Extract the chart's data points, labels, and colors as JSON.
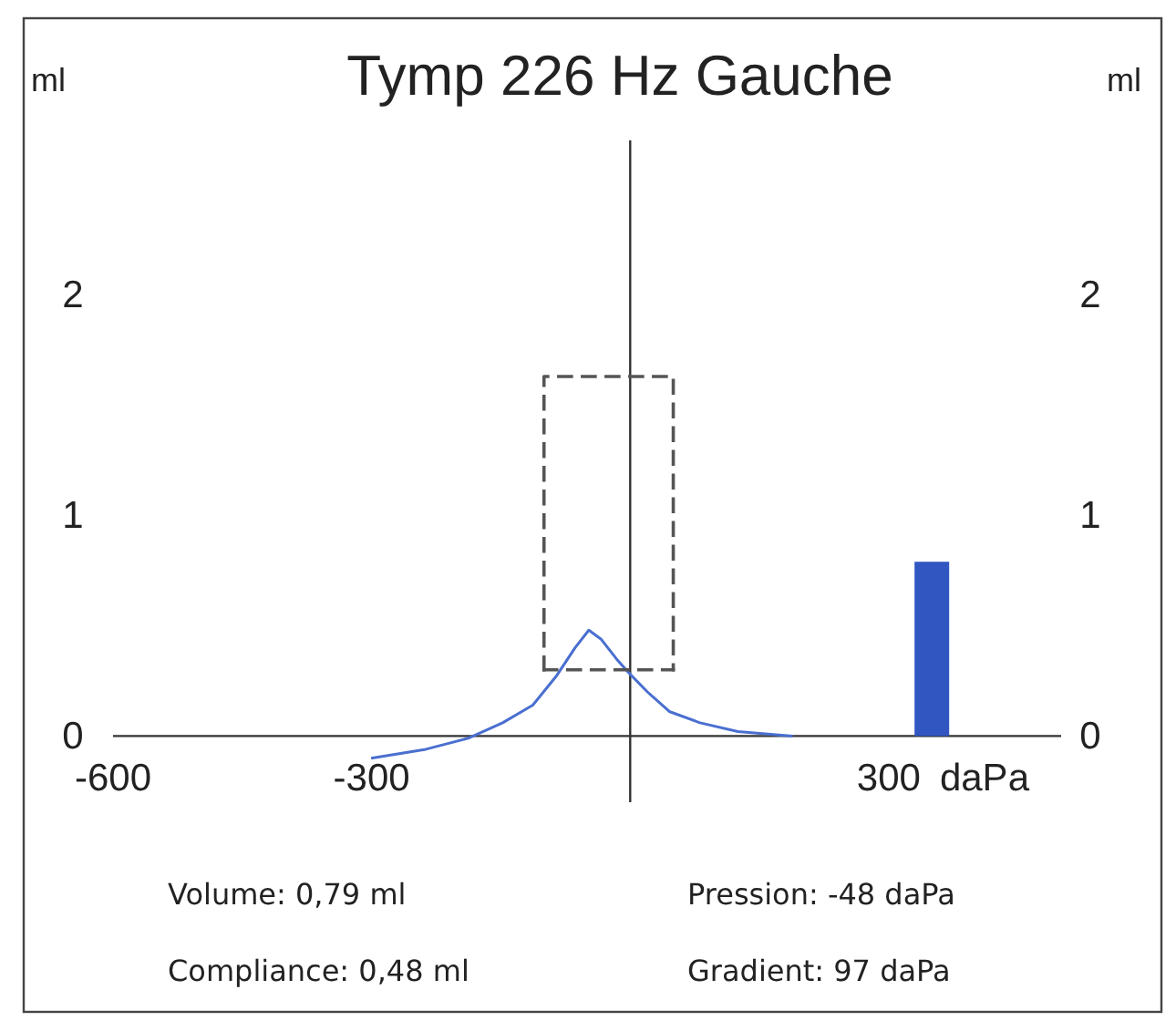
{
  "chart_data": {
    "type": "line",
    "title": "Tymp 226 Hz Gauche",
    "xlabel": "daPa",
    "ylabel": "ml",
    "y2label": "ml",
    "xlim": [
      -600,
      500
    ],
    "xticks": [
      -600,
      -300,
      300
    ],
    "ylim": [
      -0.3,
      2.7
    ],
    "yticks": [
      0,
      1,
      2
    ],
    "y2lim": [
      -0.3,
      2.7
    ],
    "y2ticks": [
      0,
      1,
      2
    ],
    "grid": false,
    "series": [
      {
        "color": "#4a6fd0",
        "x": [
          -299,
          -237,
          -188,
          -148,
          -113,
          -86,
          -64,
          -48,
          -34,
          -16,
          0,
          20,
          46,
          81,
          125,
          187
        ],
        "values": [
          -0.1,
          -0.06,
          -0.01,
          0.06,
          0.14,
          0.27,
          0.4,
          0.48,
          0.44,
          0.35,
          0.28,
          0.2,
          0.11,
          0.06,
          0.02,
          0
        ]
      },
      {
        "color": "#555555",
        "line_style": "dashed",
        "x": [
          -100,
          -100,
          50,
          50
        ],
        "values": [
          0.3,
          1.63,
          1.63,
          0.3
        ]
      },
      {
        "color": "#555555",
        "line_style": "dashed",
        "x": [
          -100,
          50
        ],
        "values": [
          0.3,
          0.3
        ]
      },
      {
        "type": "bar",
        "color": "#3156c2",
        "x": [
          350
        ],
        "values": [
          0.79
        ]
      }
    ],
    "annotations": [
      "Volume: 0,79 ml",
      "Pression: -48 daPa",
      "Compliance: 0,48 ml",
      "Gradient: 97 daPa"
    ]
  }
}
